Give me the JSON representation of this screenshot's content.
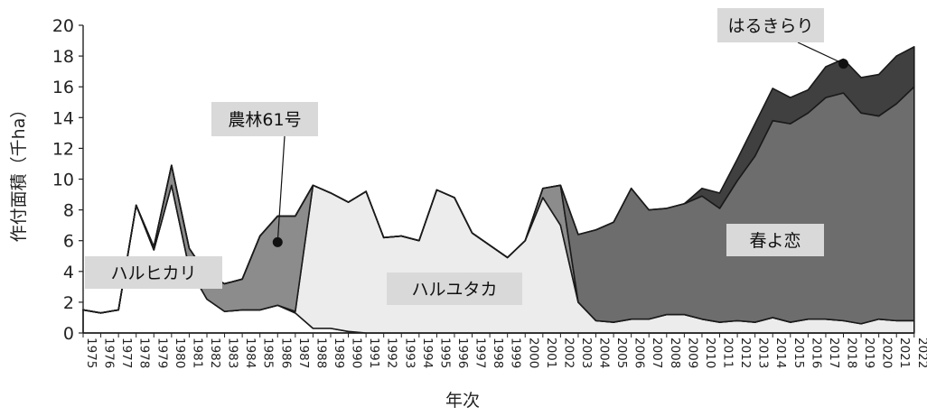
{
  "chart_data": {
    "type": "area",
    "stacked": true,
    "xlabel": "年次",
    "ylabel": "作付面積（千ha）",
    "ylim": [
      0,
      20
    ],
    "yticks": [
      0,
      2,
      4,
      6,
      8,
      10,
      12,
      14,
      16,
      18,
      20
    ],
    "grid": false,
    "x": [
      1975,
      1976,
      1977,
      1978,
      1979,
      1980,
      1981,
      1982,
      1983,
      1984,
      1985,
      1986,
      1987,
      1988,
      1989,
      1990,
      1991,
      1992,
      1993,
      1994,
      1995,
      1996,
      1997,
      1998,
      1999,
      2000,
      2001,
      2002,
      2003,
      2004,
      2005,
      2006,
      2007,
      2008,
      2009,
      2010,
      2011,
      2012,
      2013,
      2014,
      2015,
      2016,
      2017,
      2018,
      2019,
      2020,
      2021,
      2022
    ],
    "series": [
      {
        "name": "ハルヒカリ",
        "color": "#ffffff",
        "values": [
          1.5,
          1.3,
          1.5,
          8.3,
          5.4,
          9.6,
          4.2,
          2.2,
          1.4,
          1.5,
          1.5,
          1.8,
          1.3,
          0.3,
          0.3,
          0.1,
          0,
          0,
          0,
          0,
          0,
          0,
          0,
          0,
          0,
          0,
          0,
          0,
          0,
          0,
          0,
          0,
          0,
          0,
          0,
          0,
          0,
          0,
          0,
          0,
          0,
          0,
          0,
          0,
          0,
          0,
          0,
          0
        ]
      },
      {
        "name": "ハルユタカ",
        "color": "#ececec",
        "values": [
          0,
          0,
          0,
          0,
          0,
          0,
          0,
          0,
          0,
          0,
          0,
          0,
          0.1,
          9.3,
          8.8,
          8.4,
          9.2,
          6.2,
          6.3,
          6.0,
          9.3,
          8.8,
          6.5,
          5.7,
          4.9,
          6.0,
          8.8,
          7.0,
          2.0,
          0.8,
          0.7,
          0.9,
          0.9,
          1.2,
          1.2,
          0.9,
          0.7,
          0.8,
          0.7,
          1.0,
          0.7,
          0.9,
          0.9,
          0.8,
          0.6,
          0.9,
          0.8,
          0.8
        ]
      },
      {
        "name": "農林61号",
        "color": "#8c8c8c",
        "values": [
          0,
          0,
          0,
          0,
          0.2,
          1.3,
          1.3,
          1.6,
          1.8,
          2.0,
          4.8,
          5.8,
          6.2,
          0,
          0,
          0,
          0,
          0,
          0,
          0,
          0,
          0,
          0,
          0,
          0,
          0,
          0.6,
          2.6,
          0,
          0,
          0,
          0,
          0,
          0,
          0,
          0,
          0,
          0,
          0,
          0,
          0,
          0,
          0,
          0,
          0,
          0,
          0,
          0
        ]
      },
      {
        "name": "春よ恋",
        "color": "#6d6d6d",
        "values": [
          0,
          0,
          0,
          0,
          0,
          0,
          0,
          0,
          0,
          0,
          0,
          0,
          0,
          0,
          0,
          0,
          0,
          0,
          0,
          0,
          0,
          0,
          0,
          0,
          0,
          0,
          0,
          0,
          4.4,
          5.9,
          6.5,
          8.5,
          7.1,
          6.9,
          7.2,
          8.0,
          7.4,
          9.1,
          10.8,
          12.8,
          12.9,
          13.4,
          14.4,
          14.8,
          13.7,
          13.2,
          14.1,
          15.2
        ]
      },
      {
        "name": "はるきらり",
        "color": "#404040",
        "values": [
          0,
          0,
          0,
          0,
          0,
          0,
          0,
          0,
          0,
          0,
          0,
          0,
          0,
          0,
          0,
          0,
          0,
          0,
          0,
          0,
          0,
          0,
          0,
          0,
          0,
          0,
          0,
          0,
          0,
          0,
          0,
          0,
          0,
          0,
          0,
          0.5,
          1.0,
          1.4,
          2.1,
          2.1,
          1.7,
          1.5,
          2.0,
          2.2,
          2.3,
          2.7,
          3.1,
          2.6
        ]
      }
    ],
    "labels": [
      {
        "text": "ハルヒカリ",
        "box": true
      },
      {
        "text": "ハルユタカ",
        "box": true
      },
      {
        "text": "春よ恋",
        "box": true
      },
      {
        "text": "農林61号",
        "box": true,
        "leader_year": 1986,
        "leader_value": 5.9
      },
      {
        "text": "はるきらり",
        "box": true,
        "leader_year": 2018,
        "leader_value": 17.5
      }
    ]
  }
}
